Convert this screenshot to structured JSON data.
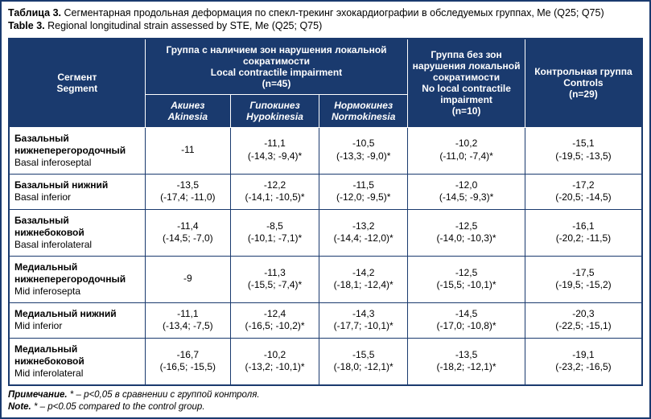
{
  "caption": {
    "ru_label": "Таблица 3.",
    "ru_text": " Сегментарная продольная деформация по спекл-трекинг эхокардиографии в обследуемых группах, Me (Q25; Q75)",
    "en_label": "Table 3.",
    "en_text": " Regional longitudinal strain assessed by STE, Me (Q25; Q75)"
  },
  "header": {
    "segment_ru": "Сегмент",
    "segment_en": "Segment",
    "group_lci_ru": "Группа с наличием зон нарушения локальной сократимости",
    "group_lci_en": "Local contractile impairment",
    "group_lci_n": "(n=45)",
    "akinesia_ru": "Акинез",
    "akinesia_en": "Akinesia",
    "hypokinesia_ru": "Гипокинез",
    "hypokinesia_en": "Hypokinesia",
    "normokinesia_ru": "Нормокинез",
    "normokinesia_en": "Normokinesia",
    "group_nolci_ru": "Группа без зон нарушения локальной сократимости",
    "group_nolci_en": "No local contractile impairment",
    "group_nolci_n": "(n=10)",
    "control_ru": "Контрольная группа",
    "control_en": "Controls",
    "control_n": "(n=29)"
  },
  "rows": [
    {
      "ru": "Базальный нижнеперегородочный",
      "en": "Basal inferoseptal",
      "c1": "-11",
      "c2": "-11,1\n(-14,3; -9,4)*",
      "c3": "-10,5\n(-13,3; -9,0)*",
      "c4": "-10,2\n(-11,0; -7,4)*",
      "c5": "-15,1\n(-19,5; -13,5)"
    },
    {
      "ru": "Базальный нижний",
      "en": "Basal inferior",
      "c1": "-13,5\n(-17,4; -11,0)",
      "c2": "-12,2\n(-14,1; -10,5)*",
      "c3": "-11,5\n(-12,0; -9,5)*",
      "c4": "-12,0\n(-14,5; -9,3)*",
      "c5": "-17,2\n(-20,5; -14,5)"
    },
    {
      "ru": "Базальный нижнебоковой",
      "en": "Basal inferolateral",
      "c1": "-11,4\n(-14,5; -7,0)",
      "c2": "-8,5\n(-10,1; -7,1)*",
      "c3": "-13,2\n(-14,4; -12,0)*",
      "c4": "-12,5\n(-14,0; -10,3)*",
      "c5": "-16,1\n(-20,2; -11,5)"
    },
    {
      "ru": "Медиальный нижнеперегородочный",
      "en": "Mid inferosepta",
      "c1": "-9",
      "c2": "-11,3\n(-15,5; -7,4)*",
      "c3": "-14,2\n(-18,1; -12,4)*",
      "c4": "-12,5\n(-15,5; -10,1)*",
      "c5": "-17,5\n(-19,5; -15,2)"
    },
    {
      "ru": "Медиальный нижний",
      "en": "Mid inferior",
      "c1": "-11,1\n(-13,4; -7,5)",
      "c2": "-12,4\n(-16,5; -10,2)*",
      "c3": "-14,3\n(-17,7; -10,1)*",
      "c4": "-14,5\n(-17,0; -10,8)*",
      "c5": "-20,3\n(-22,5; -15,1)"
    },
    {
      "ru": "Медиальный нижнебоковой",
      "en": "Mid inferolateral",
      "c1": "-16,7\n(-16,5; -15,5)",
      "c2": "-10,2\n(-13,2; -10,1)*",
      "c3": "-15,5\n(-18,0; -12,1)*",
      "c4": "-13,5\n(-18,2; -12,1)*",
      "c5": "-19,1\n(-23,2; -16,5)"
    }
  ],
  "footnote": {
    "ru_label": "Примечание.",
    "ru_text": " * – p<0,05 в сравнении с группой контроля.",
    "en_label": "Note.",
    "en_text": " * – p<0.05 compared to the control group."
  },
  "style": {
    "header_bg": "#1a3a6e",
    "header_fg": "#ffffff",
    "border_color": "#1a3a6e",
    "body_fg": "#000000",
    "font_body": 12,
    "font_caption": 12.5,
    "font_footnote": 11.5,
    "col_widths_pct": [
      21.5,
      13.5,
      14,
      14,
      18.5,
      18.5
    ]
  }
}
